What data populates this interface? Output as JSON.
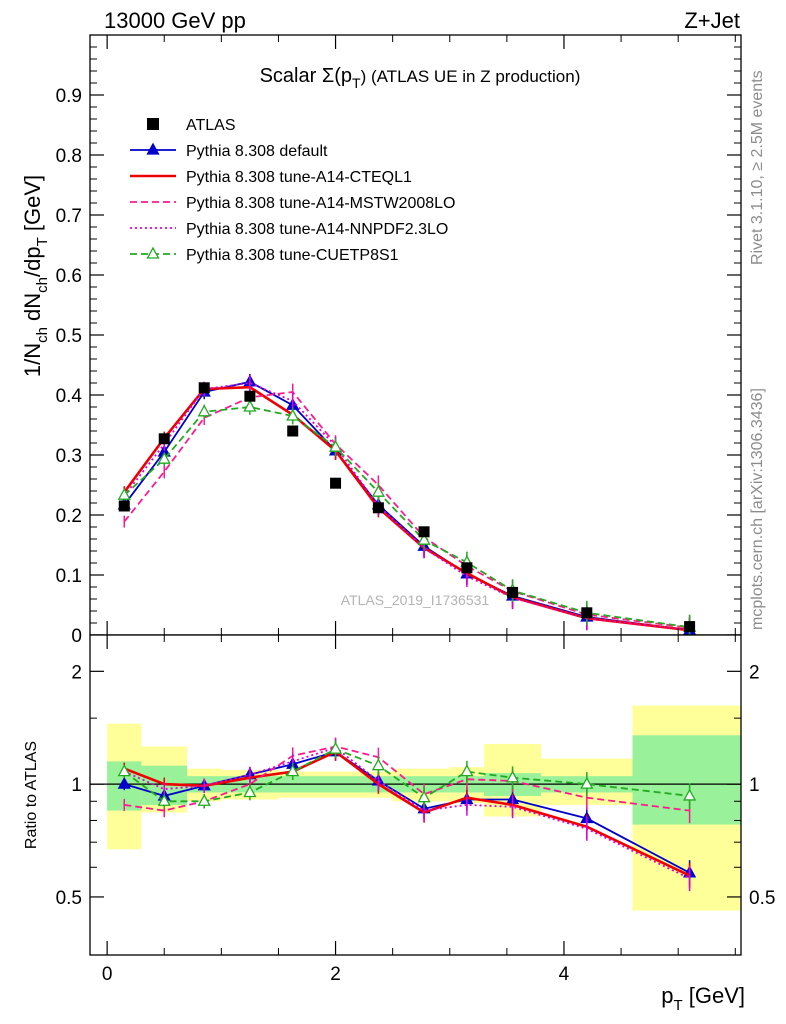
{
  "header": {
    "left": "13000 GeV pp",
    "right": "Z+Jet"
  },
  "side_labels": {
    "rivet": "Rivet 3.1.10, ≥ 2.5M events",
    "mcplots": "mcplots.cern.ch [arXiv:1306.3436]"
  },
  "chart_data": [
    {
      "type": "line",
      "panel": "main",
      "title_prefix": "Scalar Σ(p",
      "title_sub": "T",
      "title_suffix": ") (ATLAS UE in Z production)",
      "ylabel": "1/N_ch dN_ch/dp_T [GeV]",
      "watermark": "ATLAS_2019_I1736531",
      "xlim": [
        -0.15,
        5.55
      ],
      "ylim": [
        0,
        1.0
      ],
      "yticks": [
        0,
        0.1,
        0.2,
        0.3,
        0.4,
        0.5,
        0.6,
        0.7,
        0.8,
        0.9
      ],
      "ytick_labels": [
        "0",
        "0.1",
        "0.2",
        "0.3",
        "0.4",
        "0.5",
        "0.6",
        "0.7",
        "0.8",
        "0.9"
      ],
      "x": [
        0.15,
        0.5,
        0.85,
        1.25,
        1.625,
        2.0,
        2.375,
        2.775,
        3.15,
        3.55,
        4.2,
        5.1
      ],
      "x_edges": [
        0.0,
        0.3,
        0.7,
        1.0,
        1.5,
        1.75,
        2.25,
        2.5,
        3.0,
        3.3,
        3.8,
        4.6,
        5.6
      ],
      "legend_position": "top-left",
      "series": [
        {
          "name": "ATLAS",
          "color": "#000000",
          "style": "points",
          "values": [
            0.215,
            0.327,
            0.412,
            0.398,
            0.34,
            0.253,
            0.212,
            0.172,
            0.112,
            0.071,
            0.037,
            0.014
          ]
        },
        {
          "name": "Pythia 8.308 default",
          "color": "#0000cc",
          "style": "solid-triangle",
          "values": [
            0.217,
            0.305,
            0.405,
            0.422,
            0.383,
            0.307,
            0.217,
            0.148,
            0.102,
            0.065,
            0.03,
            0.008
          ]
        },
        {
          "name": "Pythia 8.308 tune-A14-CTEQL1",
          "color": "#ee0000",
          "style": "solid",
          "values": [
            0.238,
            0.328,
            0.41,
            0.413,
            0.367,
            0.307,
            0.212,
            0.145,
            0.103,
            0.063,
            0.028,
            0.008
          ]
        },
        {
          "name": "Pythia 8.308 tune-A14-MSTW2008LO",
          "color": "#ff1a8c",
          "style": "dashed",
          "values": [
            0.189,
            0.272,
            0.362,
            0.396,
            0.405,
            0.318,
            0.25,
            0.163,
            0.115,
            0.073,
            0.034,
            0.012
          ]
        },
        {
          "name": "Pythia 8.308 tune-A14-NNPDF2.3LO",
          "color": "#dd00dd",
          "style": "dotted",
          "values": [
            0.232,
            0.318,
            0.41,
            0.42,
            0.39,
            0.315,
            0.215,
            0.145,
            0.098,
            0.062,
            0.028,
            0.008
          ]
        },
        {
          "name": "Pythia 8.308 tune-CUETP8S1",
          "color": "#22aa22",
          "style": "dashed-open-triangle",
          "values": [
            0.233,
            0.293,
            0.372,
            0.38,
            0.365,
            0.313,
            0.238,
            0.158,
            0.121,
            0.074,
            0.037,
            0.013
          ]
        }
      ]
    },
    {
      "type": "line",
      "panel": "ratio",
      "ylabel": "Ratio to ATLAS",
      "xlabel_main": "p",
      "xlabel_sub": "T",
      "xlabel_suffix": " [GeV]",
      "xlim": [
        -0.15,
        5.55
      ],
      "ylim": [
        0.35,
        2.5
      ],
      "yticks": [
        0.5,
        1,
        2
      ],
      "ytick_labels": [
        "0.5",
        "1",
        "2"
      ],
      "xticks": [
        0,
        2,
        4
      ],
      "xtick_labels": [
        "0",
        "2",
        "4"
      ],
      "x": [
        0.15,
        0.5,
        0.85,
        1.25,
        1.625,
        2.0,
        2.375,
        2.775,
        3.15,
        3.55,
        4.2,
        5.1
      ],
      "x_edges": [
        0.0,
        0.3,
        0.7,
        1.0,
        1.5,
        1.75,
        2.25,
        2.5,
        3.0,
        3.3,
        3.8,
        4.6,
        5.6
      ],
      "band_inner": [
        [
          0.85,
          1.15
        ],
        [
          0.88,
          1.12
        ],
        [
          0.95,
          1.05
        ],
        [
          0.95,
          1.05
        ],
        [
          0.95,
          1.05
        ],
        [
          0.95,
          1.05
        ],
        [
          0.95,
          1.05
        ],
        [
          0.95,
          1.05
        ],
        [
          0.95,
          1.05
        ],
        [
          0.93,
          1.07
        ],
        [
          0.95,
          1.05
        ],
        [
          0.78,
          1.35
        ]
      ],
      "band_outer": [
        [
          0.67,
          1.45
        ],
        [
          0.84,
          1.26
        ],
        [
          0.9,
          1.1
        ],
        [
          0.91,
          1.09
        ],
        [
          0.92,
          1.08
        ],
        [
          0.92,
          1.08
        ],
        [
          0.92,
          1.08
        ],
        [
          0.9,
          1.1
        ],
        [
          0.89,
          1.11
        ],
        [
          0.82,
          1.28
        ],
        [
          0.88,
          1.17
        ],
        [
          0.46,
          1.62
        ]
      ],
      "series": [
        {
          "name": "Pythia 8.308 default",
          "color": "#0000cc",
          "style": "solid-triangle",
          "values": [
            1.0,
            0.93,
            0.99,
            1.06,
            1.13,
            1.22,
            1.02,
            0.86,
            0.91,
            0.91,
            0.81,
            0.58
          ]
        },
        {
          "name": "Pythia 8.308 tune-A14-CTEQL1",
          "color": "#ee0000",
          "style": "solid",
          "values": [
            1.1,
            1.0,
            0.99,
            1.04,
            1.08,
            1.22,
            1.0,
            0.84,
            0.92,
            0.88,
            0.77,
            0.57
          ]
        },
        {
          "name": "Pythia 8.308 tune-A14-MSTW2008LO",
          "color": "#ff1a8c",
          "style": "dashed",
          "values": [
            0.88,
            0.85,
            0.9,
            1.0,
            1.19,
            1.26,
            1.18,
            0.94,
            1.03,
            1.02,
            0.92,
            0.85
          ]
        },
        {
          "name": "Pythia 8.308 tune-A14-NNPDF2.3LO",
          "color": "#dd00dd",
          "style": "dotted",
          "values": [
            1.08,
            0.97,
            0.99,
            1.06,
            1.15,
            1.25,
            1.02,
            0.85,
            0.88,
            0.87,
            0.76,
            0.56
          ]
        },
        {
          "name": "Pythia 8.308 tune-CUETP8S1",
          "color": "#22aa22",
          "style": "dashed-open-triangle",
          "values": [
            1.08,
            0.9,
            0.9,
            0.95,
            1.08,
            1.24,
            1.12,
            0.92,
            1.08,
            1.04,
            1.0,
            0.93
          ]
        }
      ]
    }
  ]
}
